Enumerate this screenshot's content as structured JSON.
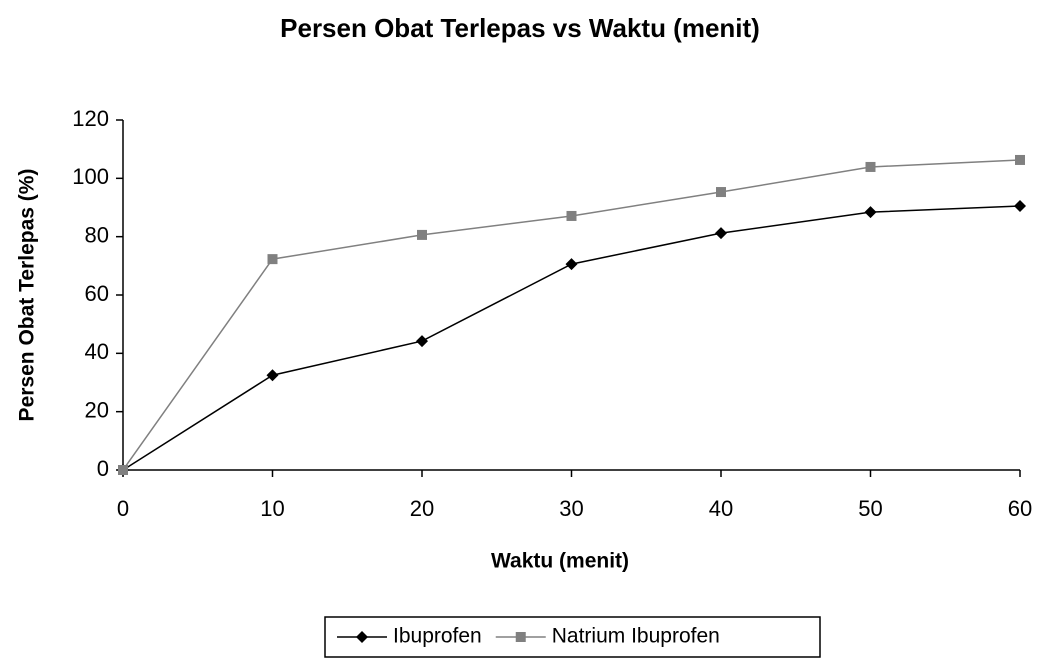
{
  "chart_data": {
    "type": "line",
    "title": "Persen Obat Terlepas vs Waktu (menit)",
    "x_label": "Waktu (menit)",
    "y_label": "Persen Obat Terlepas (%)",
    "x": [
      0,
      10,
      20,
      30,
      40,
      50,
      60
    ],
    "series": [
      {
        "name": "Ibuprofen",
        "color": "#000000",
        "marker": "diamond",
        "values": [
          0,
          32.5,
          44.2,
          70.6,
          81.2,
          88.4,
          90.5
        ]
      },
      {
        "name": "Natrium Ibuprofen",
        "color": "#808080",
        "marker": "square",
        "values": [
          0,
          72.3,
          80.6,
          87.1,
          95.3,
          103.9,
          106.3
        ]
      }
    ],
    "xlim": [
      0,
      60
    ],
    "xticks": [
      0,
      10,
      20,
      30,
      40,
      50,
      60
    ],
    "ylim": [
      0,
      120
    ],
    "yticks": [
      0,
      20,
      40,
      60,
      80,
      100,
      120
    ],
    "grid": false,
    "legend": "bottom"
  }
}
